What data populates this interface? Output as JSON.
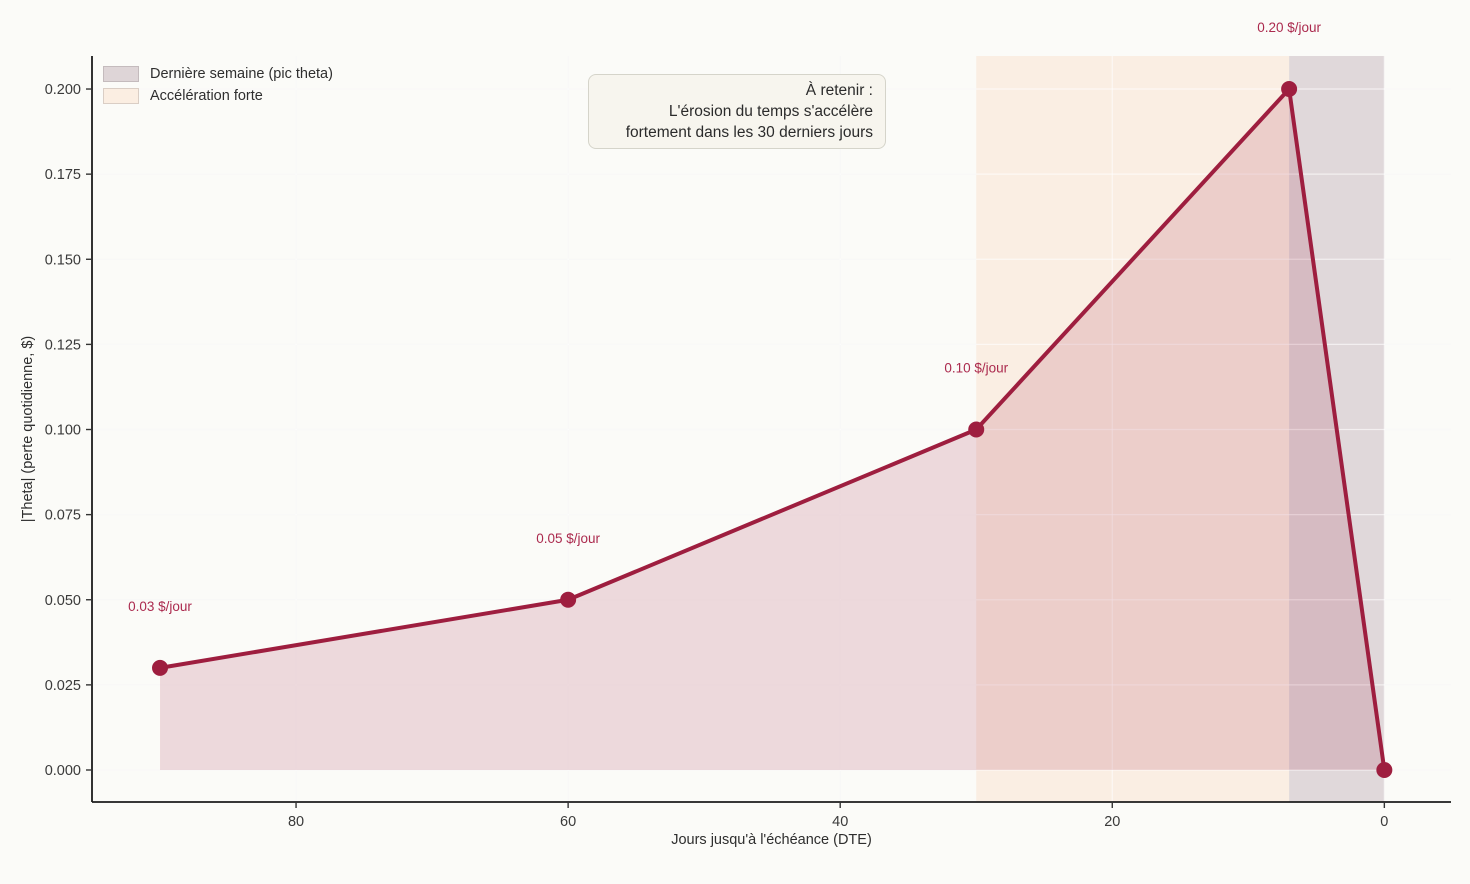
{
  "chart_data": {
    "type": "line",
    "xlabel": "Jours jusqu'à l'échéance (DTE)",
    "ylabel": "|Theta| (perte quotidienne, $)",
    "x": [
      90,
      60,
      30,
      7,
      0
    ],
    "y": [
      0.03,
      0.05,
      0.1,
      0.2,
      0.0
    ],
    "point_labels": [
      "0.03 $/jour",
      "0.05 $/jour",
      "0.10 $/jour",
      "0.20 $/jour",
      ""
    ],
    "x_axis_reversed": true,
    "xlim": [
      95,
      -4.9
    ],
    "ylim": [
      -0.0094,
      0.2097
    ],
    "x_ticks": [
      80,
      60,
      40,
      20,
      0
    ],
    "x_tick_labels": [
      "80",
      "60",
      "40",
      "20",
      "0"
    ],
    "y_ticks": [
      0.0,
      0.025,
      0.05,
      0.075,
      0.1,
      0.125,
      0.15,
      0.175,
      0.2
    ],
    "y_tick_labels": [
      "0.000",
      "0.025",
      "0.050",
      "0.075",
      "0.100",
      "0.125",
      "0.150",
      "0.175",
      "0.200"
    ],
    "grid": true,
    "bands": [
      {
        "name": "acceleration-forte",
        "from": 30,
        "to": 7,
        "color": "#faeee3"
      },
      {
        "name": "derniere-semaine",
        "from": 7,
        "to": 0,
        "color": "#e0d8da"
      }
    ],
    "legend": {
      "position": "upper-left",
      "items": [
        {
          "label": "Dernière semaine (pic theta)",
          "color": "#ded5d7"
        },
        {
          "label": "Accélération forte",
          "color": "#fbeee2"
        }
      ]
    },
    "annotation": {
      "lines": [
        "À retenir :",
        "L'érosion du temps s'accélère",
        "fortement dans les 30 derniers jours"
      ]
    },
    "colors": {
      "line": "#9e1e3f",
      "marker": "#9e1e3f",
      "area_fill": "rgba(158,30,62,0.15)",
      "point_label_text": "#ab2a4e",
      "tick_text": "#3a3a3a",
      "spine": "#1c1c1c",
      "grid_under": "#f1f0ed",
      "grid_over": "rgba(255,255,255,0.6)",
      "background": "#fbfbf8"
    }
  }
}
